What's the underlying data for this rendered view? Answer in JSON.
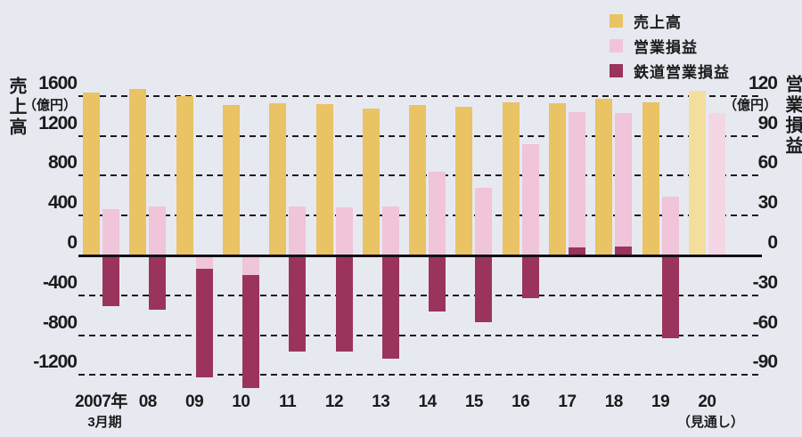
{
  "colors": {
    "background": "#E7E9F1",
    "text": "#1B1B1B",
    "grid": "#1B1B1B"
  },
  "legend": {
    "items": [
      {
        "label": "売上高",
        "color": "#E9C364"
      },
      {
        "label": "営業損益",
        "color": "#F0C4D9"
      },
      {
        "label": "鉄道営業損益",
        "color": "#9B345C"
      }
    ]
  },
  "chart_data": {
    "type": "bar",
    "title": "",
    "categories": [
      {
        "main": "2007年",
        "sub": "3月期"
      },
      {
        "main": "08"
      },
      {
        "main": "09"
      },
      {
        "main": "10"
      },
      {
        "main": "11"
      },
      {
        "main": "12"
      },
      {
        "main": "13"
      },
      {
        "main": "14"
      },
      {
        "main": "15"
      },
      {
        "main": "16"
      },
      {
        "main": "17"
      },
      {
        "main": "18"
      },
      {
        "main": "19"
      },
      {
        "main": "20",
        "sub": "（見通し）"
      }
    ],
    "series": [
      {
        "key": "sales",
        "name": "売上高",
        "axis": "left",
        "color": "#E9C364",
        "forecast_color": "#F4DE9E",
        "values": [
          1630,
          1670,
          1600,
          1510,
          1525,
          1515,
          1470,
          1510,
          1495,
          1540,
          1530,
          1570,
          1540,
          1650
        ]
      },
      {
        "key": "operating",
        "name": "営業損益",
        "axis": "right",
        "color": "#F0C4D9",
        "forecast_color": "#F5D6E4",
        "values": [
          35,
          37,
          -10,
          -15,
          37,
          36,
          37,
          63,
          51,
          84,
          108,
          107,
          44,
          107
        ]
      },
      {
        "key": "rail",
        "name": "鉄道営業損益",
        "axis": "right",
        "color": "#9B345C",
        "forecast_color": "#9B345C",
        "values": [
          -38,
          -41,
          -92,
          -100,
          -72,
          -72,
          -78,
          -42,
          -50,
          -32,
          6,
          7,
          -62,
          null
        ]
      }
    ],
    "forecast_index": 13,
    "left_axis": {
      "title": "売上高",
      "unit": "（億円）",
      "ticks": [
        1600,
        1200,
        800,
        400,
        0,
        -400,
        -800,
        -1200
      ],
      "ylim": [
        -1300,
        1700
      ]
    },
    "right_axis": {
      "title": "営業損益",
      "unit": "（億円）",
      "ticks": [
        120,
        90,
        60,
        30,
        0,
        -30,
        -60,
        -90
      ],
      "ylim": [
        -97.5,
        127.5
      ]
    },
    "grid": "horizontal-dashed",
    "legend_position": "top-right"
  }
}
